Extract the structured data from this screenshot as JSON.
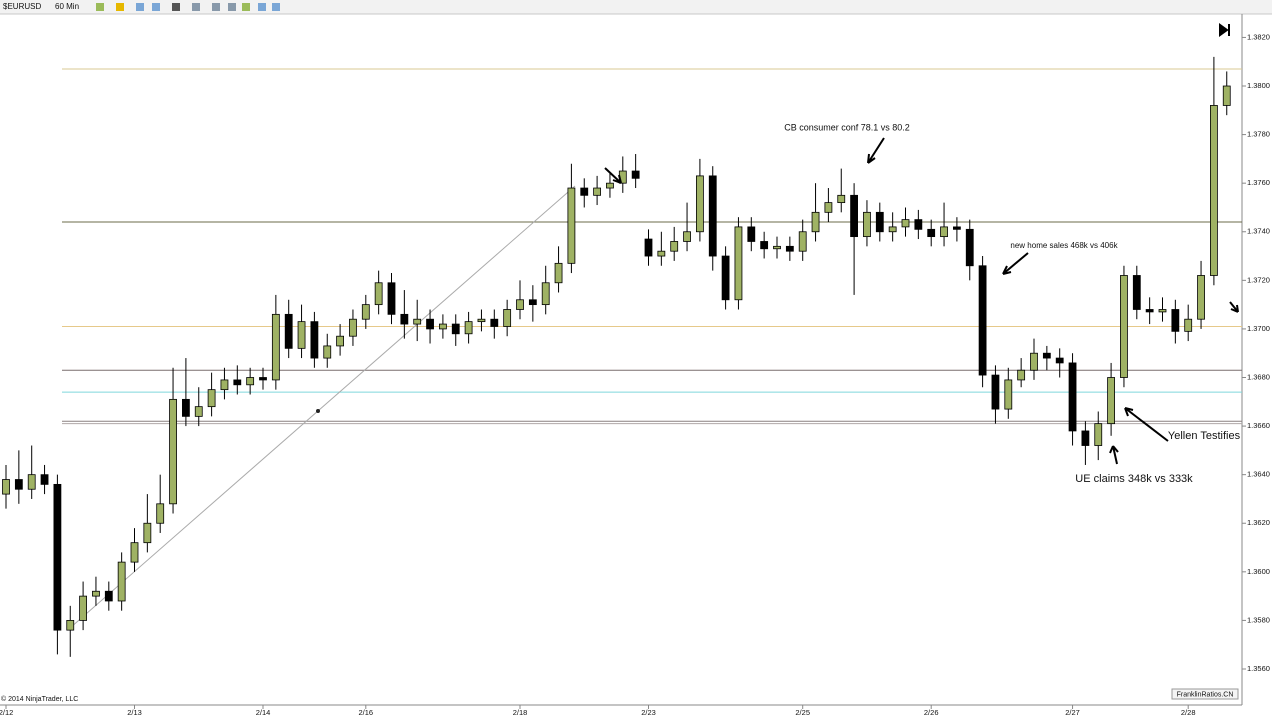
{
  "chart_data": {
    "type": "candlestick",
    "title": "$EURUSD",
    "interval": "60 Min",
    "copyright": "© 2014 NinjaTrader, LLC",
    "watermark": "FranklinRatios.CN",
    "up_color": "#9fb264",
    "down_color": "#000000",
    "categories": [
      "2/12",
      null,
      null,
      null,
      null,
      null,
      null,
      null,
      null,
      null,
      "2/13",
      null,
      null,
      null,
      null,
      null,
      null,
      null,
      null,
      null,
      "2/14",
      null,
      null,
      null,
      null,
      null,
      null,
      null,
      "2/16",
      null,
      null,
      null,
      null,
      null,
      null,
      null,
      null,
      null,
      null,
      null,
      "2/18",
      null,
      null,
      null,
      null,
      null,
      null,
      null,
      null,
      null,
      "2/23",
      null,
      null,
      null,
      null,
      null,
      null,
      null,
      null,
      null,
      null,
      null,
      "2/25",
      null,
      null,
      null,
      null,
      null,
      null,
      null,
      null,
      null,
      "2/26",
      null,
      null,
      null,
      null,
      null,
      null,
      null,
      null,
      null,
      null,
      "2/27",
      null,
      null,
      null,
      null,
      null,
      null,
      null,
      null,
      "2/28",
      null,
      null,
      null
    ],
    "open": [
      1.3632,
      1.3638,
      1.3634,
      1.364,
      1.3636,
      1.3576,
      1.358,
      1.359,
      1.3592,
      1.3588,
      1.3604,
      1.3612,
      1.362,
      1.3628,
      1.3671,
      1.3664,
      1.3668,
      1.3675,
      1.3679,
      1.3677,
      1.368,
      1.3679,
      1.3706,
      1.3692,
      1.3703,
      1.3688,
      1.3693,
      1.3697,
      1.3704,
      1.371,
      1.3719,
      1.3706,
      1.3702,
      1.3704,
      1.37,
      1.3702,
      1.3698,
      1.3703,
      1.3704,
      1.3701,
      1.3708,
      1.3712,
      1.371,
      1.3719,
      1.3727,
      1.3758,
      1.3755,
      1.3758,
      1.376,
      1.3765,
      1.3737,
      1.373,
      1.3732,
      1.3736,
      1.374,
      1.3763,
      1.373,
      1.3712,
      1.3742,
      1.3736,
      1.3733,
      1.3734,
      1.3732,
      1.374,
      1.3748,
      1.3752,
      1.3755,
      1.3738,
      1.3748,
      1.374,
      1.3742,
      1.3745,
      1.3741,
      1.3738,
      1.3742,
      1.3741,
      1.3726,
      1.3681,
      1.3667,
      1.3679,
      1.3683,
      1.369,
      1.3688,
      1.3686,
      1.3658,
      1.3652,
      1.3661,
      1.368,
      1.3722,
      1.3708,
      1.3707,
      1.3708,
      1.3699,
      1.3704,
      1.3722,
      1.3792
    ],
    "high": [
      1.3644,
      1.365,
      1.3652,
      1.3644,
      1.364,
      1.3586,
      1.3596,
      1.3598,
      1.3596,
      1.3608,
      1.3618,
      1.3632,
      1.364,
      1.3684,
      1.3688,
      1.3676,
      1.3682,
      1.3684,
      1.3685,
      1.3684,
      1.3684,
      1.3714,
      1.3712,
      1.371,
      1.3707,
      1.3698,
      1.3702,
      1.3708,
      1.3714,
      1.3724,
      1.3723,
      1.3716,
      1.3712,
      1.3708,
      1.3706,
      1.3706,
      1.3707,
      1.3708,
      1.3708,
      1.3712,
      1.372,
      1.3718,
      1.3726,
      1.3734,
      1.3768,
      1.3762,
      1.3763,
      1.3764,
      1.3771,
      1.3772,
      1.3741,
      1.374,
      1.3742,
      1.3752,
      1.377,
      1.3767,
      1.3734,
      1.3746,
      1.3746,
      1.374,
      1.3738,
      1.3738,
      1.3745,
      1.376,
      1.3758,
      1.3766,
      1.376,
      1.3753,
      1.3752,
      1.3748,
      1.375,
      1.3749,
      1.3745,
      1.3752,
      1.3746,
      1.3745,
      1.373,
      1.3685,
      1.3684,
      1.3688,
      1.3696,
      1.3693,
      1.3692,
      1.369,
      1.3662,
      1.3666,
      1.3686,
      1.3726,
      1.3726,
      1.3713,
      1.3713,
      1.3712,
      1.371,
      1.3728,
      1.3812,
      1.3806
    ],
    "low": [
      1.3626,
      1.3628,
      1.363,
      1.3632,
      1.3566,
      1.3565,
      1.3576,
      1.3586,
      1.3584,
      1.3584,
      1.36,
      1.3608,
      1.3616,
      1.3624,
      1.366,
      1.366,
      1.3664,
      1.3671,
      1.3673,
      1.3673,
      1.3675,
      1.3675,
      1.3688,
      1.3688,
      1.3684,
      1.3684,
      1.3689,
      1.3693,
      1.37,
      1.3706,
      1.3702,
      1.3696,
      1.3695,
      1.3694,
      1.3696,
      1.3693,
      1.3694,
      1.3699,
      1.3696,
      1.3697,
      1.3704,
      1.3703,
      1.3706,
      1.3715,
      1.3723,
      1.375,
      1.3751,
      1.3754,
      1.3756,
      1.3758,
      1.3726,
      1.3726,
      1.3728,
      1.3732,
      1.3736,
      1.3724,
      1.3708,
      1.3708,
      1.3732,
      1.3729,
      1.3729,
      1.3728,
      1.3728,
      1.3736,
      1.3744,
      1.3748,
      1.3714,
      1.3734,
      1.3736,
      1.3736,
      1.3738,
      1.3737,
      1.3734,
      1.3734,
      1.3736,
      1.372,
      1.3676,
      1.3661,
      1.3663,
      1.3676,
      1.3679,
      1.3683,
      1.368,
      1.3652,
      1.3644,
      1.3646,
      1.3656,
      1.3676,
      1.3704,
      1.3702,
      1.3703,
      1.3694,
      1.3695,
      1.37,
      1.3718,
      1.3788
    ],
    "close": [
      1.3638,
      1.3634,
      1.364,
      1.3636,
      1.3576,
      1.358,
      1.359,
      1.3592,
      1.3588,
      1.3604,
      1.3612,
      1.362,
      1.3628,
      1.3671,
      1.3664,
      1.3668,
      1.3675,
      1.3679,
      1.3677,
      1.368,
      1.3679,
      1.3706,
      1.3692,
      1.3703,
      1.3688,
      1.3693,
      1.3697,
      1.3704,
      1.371,
      1.3719,
      1.3706,
      1.3702,
      1.3704,
      1.37,
      1.3702,
      1.3698,
      1.3703,
      1.3704,
      1.3701,
      1.3708,
      1.3712,
      1.371,
      1.3719,
      1.3727,
      1.3758,
      1.3755,
      1.3758,
      1.376,
      1.3765,
      1.3762,
      1.373,
      1.3732,
      1.3736,
      1.374,
      1.3763,
      1.373,
      1.3712,
      1.3742,
      1.3736,
      1.3733,
      1.3734,
      1.3732,
      1.374,
      1.3748,
      1.3752,
      1.3755,
      1.3738,
      1.3748,
      1.374,
      1.3742,
      1.3745,
      1.3741,
      1.3738,
      1.3742,
      1.3741,
      1.3726,
      1.3681,
      1.3667,
      1.3679,
      1.3683,
      1.369,
      1.3688,
      1.3686,
      1.3658,
      1.3652,
      1.3661,
      1.368,
      1.3722,
      1.3708,
      1.3707,
      1.3708,
      1.3699,
      1.3704,
      1.3722,
      1.3792,
      1.38
    ],
    "ylim": [
      1.3546,
      1.3828
    ],
    "yticks": [
      {
        "value": 1.382,
        "label": "1.3820"
      },
      {
        "value": 1.38,
        "label": "1.3800"
      },
      {
        "value": 1.378,
        "label": "1.3780"
      },
      {
        "value": 1.376,
        "label": "1.3760"
      },
      {
        "value": 1.374,
        "label": "1.3740"
      },
      {
        "value": 1.372,
        "label": "1.3720"
      },
      {
        "value": 1.37,
        "label": "1.3700"
      },
      {
        "value": 1.368,
        "label": "1.3680"
      },
      {
        "value": 1.366,
        "label": "1.3660"
      },
      {
        "value": 1.364,
        "label": "1.3640"
      },
      {
        "value": 1.362,
        "label": "1.3620"
      },
      {
        "value": 1.36,
        "label": "1.3600"
      },
      {
        "value": 1.358,
        "label": "1.3580"
      },
      {
        "value": 1.356,
        "label": "1.3560"
      }
    ],
    "levels": [
      {
        "value": 1.3807,
        "color": "#d9c993"
      },
      {
        "value": 1.3744,
        "color": "#6b6b4a"
      },
      {
        "value": 1.3701,
        "color": "#e6c98a"
      },
      {
        "value": 1.3683,
        "color": "#7a6f6f"
      },
      {
        "value": 1.3674,
        "color": "#7fd8dc"
      },
      {
        "value": 1.3662,
        "color": "#8a8080"
      },
      {
        "value": 1.3661,
        "color": "#b0a8a8"
      }
    ],
    "annotations": [
      "CB consumer conf 78.1 vs 80.2",
      "new home sales 468k vs 406k",
      "UE claims 348k vs 333k",
      "Yellen Testifies"
    ]
  }
}
